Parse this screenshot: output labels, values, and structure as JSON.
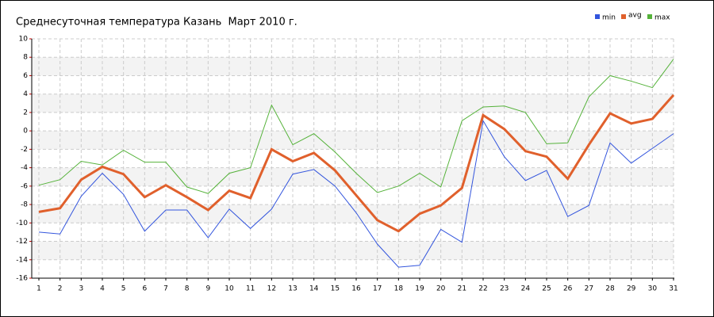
{
  "chart_data": {
    "type": "line",
    "title": "Среднесуточная температура Казань  Март 2010 г.",
    "x": [
      1,
      2,
      3,
      4,
      5,
      6,
      7,
      8,
      9,
      10,
      11,
      12,
      13,
      14,
      15,
      16,
      17,
      18,
      19,
      20,
      21,
      22,
      23,
      24,
      25,
      26,
      27,
      28,
      29,
      30,
      31
    ],
    "xlim": [
      1,
      31
    ],
    "xticks": [
      1,
      2,
      3,
      4,
      5,
      6,
      7,
      8,
      9,
      10,
      11,
      12,
      13,
      14,
      15,
      16,
      17,
      18,
      19,
      20,
      21,
      22,
      23,
      24,
      25,
      26,
      27,
      28,
      29,
      30,
      31
    ],
    "ylim": [
      -16,
      10
    ],
    "yticks": [
      -16,
      -14,
      -12,
      -10,
      -8,
      -6,
      -4,
      -2,
      0,
      2,
      4,
      6,
      8,
      10
    ],
    "grid": true,
    "legend": "top-right",
    "series": [
      {
        "name": "min",
        "color": "#3355dd",
        "values": [
          -11.0,
          -11.2,
          -7.1,
          -4.6,
          -6.9,
          -10.9,
          -8.6,
          -8.6,
          -11.6,
          -8.5,
          -10.6,
          -8.5,
          -4.7,
          -4.2,
          -6.0,
          -8.9,
          -12.3,
          -14.8,
          -14.6,
          -10.7,
          -12.1,
          1.1,
          -2.8,
          -5.4,
          -4.3,
          -9.3,
          -8.1,
          -1.3,
          -3.5,
          -1.9,
          -0.3
        ]
      },
      {
        "name": "avg",
        "color": "#e0602c",
        "values": [
          -8.8,
          -8.4,
          -5.3,
          -3.9,
          -4.7,
          -7.2,
          -5.9,
          -7.2,
          -8.6,
          -6.5,
          -7.3,
          -2.0,
          -3.3,
          -2.4,
          -4.3,
          -7.0,
          -9.7,
          -10.9,
          -9.0,
          -8.1,
          -6.2,
          1.7,
          0.2,
          -2.2,
          -2.8,
          -5.2,
          -1.5,
          1.9,
          0.8,
          1.3,
          3.9
        ]
      },
      {
        "name": "max",
        "color": "#55b23a",
        "values": [
          -5.9,
          -5.3,
          -3.3,
          -3.7,
          -2.1,
          -3.4,
          -3.4,
          -6.1,
          -6.8,
          -4.6,
          -4.0,
          2.8,
          -1.5,
          -0.3,
          -2.3,
          -4.6,
          -6.7,
          -6.0,
          -4.6,
          -6.1,
          1.1,
          2.6,
          2.7,
          2.0,
          -1.4,
          -1.3,
          3.7,
          6.0,
          5.4,
          4.7,
          7.8
        ]
      }
    ]
  }
}
